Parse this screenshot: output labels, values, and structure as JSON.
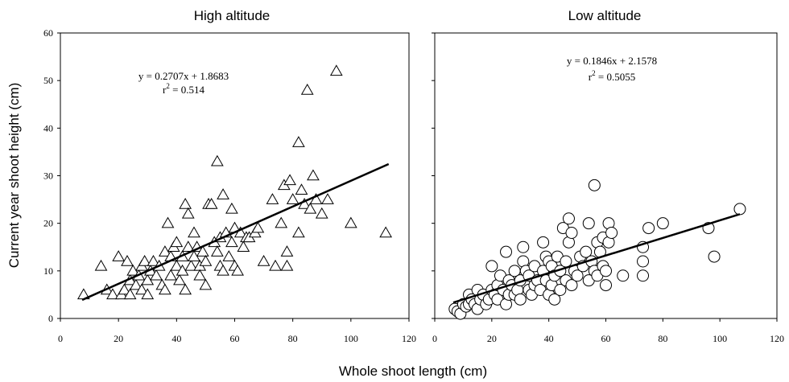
{
  "figure": {
    "ylabel": "Current year shoot height (cm)",
    "xlabel": "Whole shoot length (cm)"
  },
  "chart_data": [
    {
      "type": "scatter",
      "title": "High altitude",
      "marker": "triangle",
      "xlim": [
        0,
        120
      ],
      "ylim": [
        0,
        60
      ],
      "xticks": [
        "0",
        "20",
        "40",
        "60",
        "80",
        "100",
        "120"
      ],
      "yticks": [
        "0",
        "10",
        "20",
        "30",
        "40",
        "50",
        "60"
      ],
      "equation": "y = 0.2707x + 1.8683",
      "r2_label": "r",
      "r2_sup": "2",
      "r2_value": " = 0.514",
      "trendline": {
        "slope": 0.2707,
        "intercept": 1.8683,
        "x_range": [
          7.5,
          113
        ]
      },
      "points": [
        [
          8,
          5
        ],
        [
          14,
          11
        ],
        [
          16,
          6
        ],
        [
          18,
          5
        ],
        [
          20,
          13
        ],
        [
          21,
          5
        ],
        [
          22,
          6
        ],
        [
          23,
          12
        ],
        [
          24,
          8
        ],
        [
          24,
          5
        ],
        [
          25,
          10
        ],
        [
          26,
          7
        ],
        [
          27,
          9
        ],
        [
          28,
          11
        ],
        [
          28,
          6
        ],
        [
          29,
          12
        ],
        [
          30,
          5
        ],
        [
          30,
          8
        ],
        [
          31,
          10
        ],
        [
          32,
          12
        ],
        [
          33,
          9
        ],
        [
          34,
          11
        ],
        [
          35,
          7
        ],
        [
          36,
          14
        ],
        [
          36,
          6
        ],
        [
          37,
          20
        ],
        [
          38,
          13
        ],
        [
          38,
          9
        ],
        [
          39,
          15
        ],
        [
          40,
          11
        ],
        [
          40,
          16
        ],
        [
          41,
          8
        ],
        [
          42,
          13
        ],
        [
          42,
          10
        ],
        [
          43,
          6
        ],
        [
          43,
          24
        ],
        [
          44,
          15
        ],
        [
          44,
          22
        ],
        [
          45,
          11
        ],
        [
          46,
          18
        ],
        [
          46,
          13
        ],
        [
          47,
          15
        ],
        [
          48,
          11
        ],
        [
          48,
          9
        ],
        [
          49,
          14
        ],
        [
          50,
          7
        ],
        [
          50,
          12
        ],
        [
          51,
          24
        ],
        [
          52,
          24
        ],
        [
          53,
          16
        ],
        [
          54,
          33
        ],
        [
          54,
          14
        ],
        [
          55,
          17
        ],
        [
          55,
          11
        ],
        [
          56,
          26
        ],
        [
          56,
          10
        ],
        [
          57,
          18
        ],
        [
          58,
          13
        ],
        [
          59,
          16
        ],
        [
          59,
          23
        ],
        [
          60,
          11
        ],
        [
          60,
          19
        ],
        [
          61,
          10
        ],
        [
          62,
          18
        ],
        [
          63,
          15
        ],
        [
          64,
          17
        ],
        [
          65,
          17
        ],
        [
          67,
          18
        ],
        [
          68,
          19
        ],
        [
          70,
          12
        ],
        [
          73,
          25
        ],
        [
          74,
          11
        ],
        [
          76,
          20
        ],
        [
          77,
          28
        ],
        [
          78,
          11
        ],
        [
          78,
          14
        ],
        [
          79,
          29
        ],
        [
          80,
          25
        ],
        [
          82,
          37
        ],
        [
          82,
          18
        ],
        [
          83,
          27
        ],
        [
          84,
          24
        ],
        [
          85,
          48
        ],
        [
          86,
          23
        ],
        [
          87,
          30
        ],
        [
          88,
          25
        ],
        [
          90,
          22
        ],
        [
          92,
          25
        ],
        [
          95,
          52
        ],
        [
          100,
          20
        ],
        [
          112,
          18
        ]
      ]
    },
    {
      "type": "scatter",
      "title": "Low altitude",
      "marker": "circle",
      "xlim": [
        0,
        120
      ],
      "ylim": [
        0,
        60
      ],
      "xticks": [
        "0",
        "20",
        "40",
        "60",
        "80",
        "100",
        "120"
      ],
      "equation": "y = 0.1846x + 2.1578",
      "r2_label": "r",
      "r2_sup": "2",
      "r2_value": " = 0.5055",
      "trendline": {
        "slope": 0.1846,
        "intercept": 2.1578,
        "x_range": [
          6.5,
          107
        ]
      },
      "points": [
        [
          7,
          2
        ],
        [
          8,
          1.5
        ],
        [
          9,
          1
        ],
        [
          10,
          3
        ],
        [
          11,
          2.5
        ],
        [
          12,
          3
        ],
        [
          12,
          5
        ],
        [
          13,
          4
        ],
        [
          14,
          3
        ],
        [
          15,
          2
        ],
        [
          15,
          6
        ],
        [
          16,
          4
        ],
        [
          17,
          5
        ],
        [
          18,
          3
        ],
        [
          19,
          4
        ],
        [
          20,
          11
        ],
        [
          20,
          6
        ],
        [
          21,
          5
        ],
        [
          22,
          7
        ],
        [
          22,
          4
        ],
        [
          23,
          9
        ],
        [
          24,
          6
        ],
        [
          25,
          3
        ],
        [
          25,
          14
        ],
        [
          26,
          5
        ],
        [
          26,
          8
        ],
        [
          27,
          7
        ],
        [
          28,
          10
        ],
        [
          28,
          5
        ],
        [
          29,
          6
        ],
        [
          30,
          8
        ],
        [
          30,
          4
        ],
        [
          31,
          12
        ],
        [
          31,
          15
        ],
        [
          32,
          10
        ],
        [
          33,
          6
        ],
        [
          33,
          9
        ],
        [
          34,
          5
        ],
        [
          35,
          11
        ],
        [
          35,
          7
        ],
        [
          36,
          8
        ],
        [
          37,
          6
        ],
        [
          38,
          16
        ],
        [
          38,
          10
        ],
        [
          39,
          13
        ],
        [
          39,
          8
        ],
        [
          40,
          12
        ],
        [
          40,
          5
        ],
        [
          41,
          7
        ],
        [
          41,
          11
        ],
        [
          42,
          4
        ],
        [
          42,
          9
        ],
        [
          43,
          13
        ],
        [
          44,
          6
        ],
        [
          44,
          10
        ],
        [
          45,
          19
        ],
        [
          46,
          8
        ],
        [
          46,
          12
        ],
        [
          47,
          21
        ],
        [
          47,
          16
        ],
        [
          48,
          7
        ],
        [
          48,
          18
        ],
        [
          49,
          10
        ],
        [
          50,
          9
        ],
        [
          51,
          13
        ],
        [
          52,
          11
        ],
        [
          53,
          14
        ],
        [
          54,
          20
        ],
        [
          54,
          8
        ],
        [
          55,
          12
        ],
        [
          56,
          28
        ],
        [
          56,
          10
        ],
        [
          57,
          16
        ],
        [
          57,
          9
        ],
        [
          58,
          14
        ],
        [
          59,
          11
        ],
        [
          59,
          17
        ],
        [
          60,
          10
        ],
        [
          60,
          7
        ],
        [
          61,
          20
        ],
        [
          61,
          16
        ],
        [
          62,
          18
        ],
        [
          66,
          9
        ],
        [
          73,
          15
        ],
        [
          73,
          12
        ],
        [
          73,
          9
        ],
        [
          75,
          19
        ],
        [
          80,
          20
        ],
        [
          96,
          19
        ],
        [
          98,
          13
        ],
        [
          107,
          23
        ]
      ]
    }
  ]
}
